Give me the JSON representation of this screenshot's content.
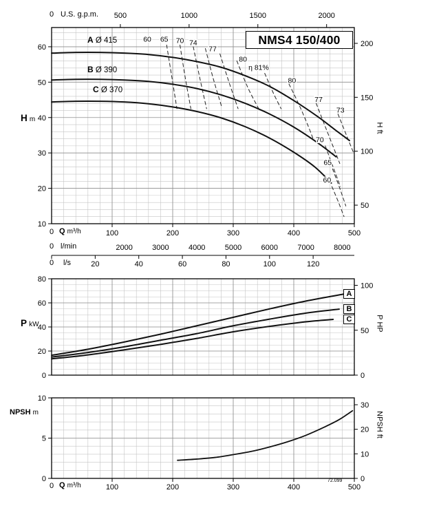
{
  "title": "NMS4 150/400",
  "drawing_number": "72.099",
  "colors": {
    "curve": "#111111",
    "grid_minor": "#c4c4c4",
    "grid_major": "#8f8f8f",
    "axis": "#000000",
    "efficiency": "#222222"
  },
  "labels": {
    "top_zero": "0",
    "us_gpm": "U.S. g.p.m.",
    "h_sym": "H",
    "h_unit": "m",
    "h_right": "H ft",
    "q_zero": "0",
    "q_sym": "Q",
    "q_unit": "m³/h",
    "lmin_zero": "0",
    "lmin": "l/min",
    "ls_zero": "0",
    "ls": "l/s",
    "p_sym": "P",
    "p_unit": "kW",
    "p_right": "P HP",
    "npsh_sym": "NPSH",
    "npsh_unit": "m",
    "npsh_right": "NPSH ft"
  },
  "chart_data": [
    {
      "id": "head",
      "type": "line",
      "title": "NMS4 150/400",
      "xlabel": "Q m³/h",
      "ylabel_left": "H m",
      "ylabel_right": "H ft",
      "xlim": [
        0,
        500
      ],
      "ylim": [
        10,
        65
      ],
      "grid": true,
      "x_ticks_m3h": [
        0,
        100,
        200,
        300,
        400,
        500
      ],
      "x_ticks_usgpm": [
        500,
        1000,
        1500,
        2000
      ],
      "x_ticks_lmin": [
        2000,
        3000,
        4000,
        5000,
        6000,
        7000,
        8000
      ],
      "x_ticks_ls": [
        20,
        40,
        60,
        80,
        100,
        120
      ],
      "y_ticks_m": [
        10,
        20,
        30,
        40,
        50,
        60
      ],
      "y_ticks_ft": [
        50,
        100,
        150,
        200
      ],
      "unit_conversions": {
        "usgpm_to_m3h": 0.2271,
        "lmin_to_m3h": 0.06,
        "ls_to_m3h": 3.6,
        "ft_to_m": 0.3048
      },
      "series": [
        {
          "name": "A",
          "diameter": "Ø 415",
          "points": [
            [
              0,
              58.2
            ],
            [
              40,
              58.4
            ],
            [
              80,
              58.4
            ],
            [
              120,
              58.2
            ],
            [
              160,
              57.8
            ],
            [
              200,
              57.0
            ],
            [
              240,
              55.8
            ],
            [
              280,
              54.2
            ],
            [
              320,
              51.8
            ],
            [
              360,
              48.8
            ],
            [
              400,
              44.8
            ],
            [
              440,
              40.2
            ],
            [
              470,
              36.3
            ],
            [
              492,
              33.5
            ]
          ]
        },
        {
          "name": "B",
          "diameter": "Ø 390",
          "points": [
            [
              0,
              50.6
            ],
            [
              40,
              50.8
            ],
            [
              80,
              50.8
            ],
            [
              120,
              50.6
            ],
            [
              160,
              50.2
            ],
            [
              200,
              49.4
            ],
            [
              240,
              48.2
            ],
            [
              280,
              46.4
            ],
            [
              320,
              44.0
            ],
            [
              360,
              41.0
            ],
            [
              400,
              37.3
            ],
            [
              440,
              32.8
            ],
            [
              470,
              28.9
            ]
          ]
        },
        {
          "name": "C",
          "diameter": "Ø 370",
          "points": [
            [
              0,
              44.4
            ],
            [
              40,
              44.6
            ],
            [
              80,
              44.6
            ],
            [
              120,
              44.4
            ],
            [
              160,
              43.9
            ],
            [
              200,
              43.0
            ],
            [
              240,
              41.7
            ],
            [
              280,
              39.9
            ],
            [
              320,
              37.4
            ],
            [
              360,
              34.2
            ],
            [
              400,
              30.2
            ],
            [
              435,
              26.0
            ],
            [
              462,
              21.5
            ]
          ]
        }
      ],
      "efficiency_contours": [
        {
          "label": "60",
          "label_at": [
            158,
            62.2
          ],
          "points": [
            [
              190,
              60.5
            ],
            [
              199,
              51.0
            ],
            [
              207,
              42.5
            ]
          ]
        },
        {
          "label": "65",
          "label_at": [
            186,
            62.2
          ],
          "points": [
            [
              212,
              60.5
            ],
            [
              221,
              51.0
            ],
            [
              230,
              42.5
            ]
          ]
        },
        {
          "label": "70",
          "label_at": [
            212,
            61.8
          ],
          "points": [
            [
              234,
              60.0
            ],
            [
              245,
              51.0
            ],
            [
              256,
              42.5
            ]
          ]
        },
        {
          "label": "74",
          "label_at": [
            234,
            61.2
          ],
          "points": [
            [
              254,
              59.5
            ],
            [
              267,
              51.0
            ],
            [
              281,
              43.0
            ]
          ]
        },
        {
          "label": "77",
          "label_at": [
            266,
            59.5
          ],
          "points": [
            [
              278,
              58.0
            ],
            [
              293,
              50.0
            ],
            [
              308,
              42.5
            ]
          ]
        },
        {
          "label": "80",
          "label_at": [
            316,
            56.6
          ],
          "points": [
            [
              306,
              56.0
            ],
            [
              324,
              48.5
            ],
            [
              342,
              42.5
            ]
          ]
        },
        {
          "label": "η 81%",
          "label_at": [
            342,
            54.2
          ],
          "points": [
            [
              352,
              52.5
            ],
            [
              366,
              47.0
            ],
            [
              379,
              42.5
            ]
          ]
        },
        {
          "label": "80",
          "label_at": [
            397,
            50.6
          ],
          "points": [
            [
              392,
              49.5
            ],
            [
              409,
              43.5
            ],
            [
              424,
              37.5
            ],
            [
              433,
              33.5
            ]
          ]
        },
        {
          "label": "77",
          "label_at": [
            441,
            45.2
          ],
          "points": [
            [
              437,
              44.0
            ],
            [
              453,
              37.0
            ],
            [
              468,
              30.5
            ],
            [
              476,
              27.0
            ]
          ]
        },
        {
          "label": "73",
          "label_at": [
            477,
            42.2
          ],
          "points": [
            [
              473,
              41.0
            ],
            [
              487,
              35.0
            ],
            [
              500,
              29.5
            ]
          ]
        },
        {
          "label": "70",
          "label_at": [
            443,
            33.8
          ],
          "points": [
            [
              452,
              32.0
            ],
            [
              465,
              26.0
            ],
            [
              477,
              20.5
            ]
          ]
        },
        {
          "label": "65",
          "label_at": [
            456,
            27.4
          ],
          "points": [
            [
              464,
              25.5
            ],
            [
              476,
              20.0
            ],
            [
              486,
              15.0
            ]
          ]
        },
        {
          "label": "60",
          "label_at": [
            455,
            22.4
          ],
          "points": [
            [
              463,
              20.5
            ],
            [
              474,
              16.0
            ],
            [
              483,
              12.0
            ]
          ]
        }
      ]
    },
    {
      "id": "power",
      "type": "line",
      "xlabel": "Q m³/h",
      "ylabel_left": "P kW",
      "ylabel_right": "P HP",
      "xlim": [
        0,
        500
      ],
      "ylim": [
        0,
        80
      ],
      "grid": true,
      "y_ticks_kw": [
        0,
        20,
        40,
        60,
        80
      ],
      "y_ticks_hp": [
        0,
        50,
        100
      ],
      "unit_conversions": {
        "hp_to_kw": 0.7457
      },
      "series": [
        {
          "name": "A",
          "points": [
            [
              0,
              16.5
            ],
            [
              60,
              21.5
            ],
            [
              120,
              27.5
            ],
            [
              180,
              34.0
            ],
            [
              240,
              41.0
            ],
            [
              300,
              48.0
            ],
            [
              360,
              55.0
            ],
            [
              420,
              61.5
            ],
            [
              485,
              67.5
            ]
          ]
        },
        {
          "name": "B",
          "points": [
            [
              0,
              15.0
            ],
            [
              60,
              18.8
            ],
            [
              120,
              23.5
            ],
            [
              180,
              29.0
            ],
            [
              240,
              34.5
            ],
            [
              300,
              41.0
            ],
            [
              360,
              46.5
            ],
            [
              420,
              51.5
            ],
            [
              475,
              54.8
            ]
          ]
        },
        {
          "name": "C",
          "points": [
            [
              0,
              13.5
            ],
            [
              60,
              16.8
            ],
            [
              120,
              21.0
            ],
            [
              180,
              25.5
            ],
            [
              240,
              30.5
            ],
            [
              300,
              36.0
            ],
            [
              360,
              40.5
            ],
            [
              420,
              44.3
            ],
            [
              465,
              46.3
            ]
          ]
        }
      ]
    },
    {
      "id": "npsh",
      "type": "line",
      "xlabel": "Q m³/h",
      "ylabel_left": "NPSH m",
      "ylabel_right": "NPSH ft",
      "xlim": [
        0,
        500
      ],
      "ylim": [
        0,
        10
      ],
      "grid": true,
      "x_ticks_m3h": [
        0,
        100,
        200,
        300,
        400,
        500
      ],
      "y_ticks_m": [
        0,
        5,
        10
      ],
      "y_ticks_ft": [
        0,
        10,
        20,
        30
      ],
      "unit_conversions": {
        "ft_to_m": 0.3048
      },
      "series": [
        {
          "name": "NPSH",
          "points": [
            [
              208,
              2.25
            ],
            [
              240,
              2.4
            ],
            [
              270,
              2.6
            ],
            [
              300,
              2.95
            ],
            [
              330,
              3.35
            ],
            [
              360,
              3.9
            ],
            [
              390,
              4.55
            ],
            [
              420,
              5.35
            ],
            [
              450,
              6.35
            ],
            [
              475,
              7.3
            ],
            [
              497,
              8.4
            ]
          ]
        }
      ]
    }
  ]
}
